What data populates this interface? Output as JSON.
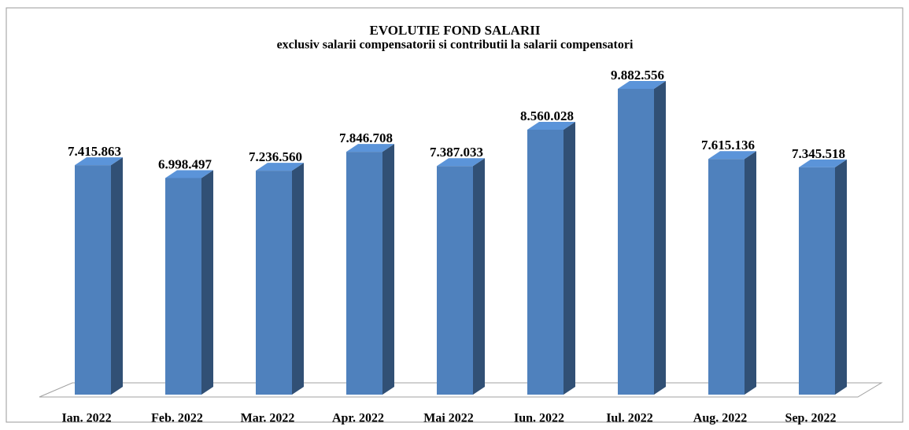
{
  "chart_data": {
    "type": "bar",
    "title": "EVOLUTIE FOND SALARII",
    "subtitle": "exclusiv salarii compensatorii si contributii la salarii compensatori",
    "categories": [
      "Ian. 2022",
      "Feb. 2022",
      "Mar. 2022",
      "Apr. 2022",
      "Mai 2022",
      "Iun. 2022",
      "Iul. 2022",
      "Aug. 2022",
      "Sep. 2022"
    ],
    "values": [
      7415863,
      6998497,
      7236560,
      7846708,
      7387033,
      8560028,
      9882556,
      7615136,
      7345518
    ],
    "value_labels": [
      "7.415.863",
      "6.998.497",
      "7.236.560",
      "7.846.708",
      "7.387.033",
      "8.560.028",
      "9.882.556",
      "7.615.136",
      "7.345.518"
    ],
    "color": "#4f81bd"
  }
}
